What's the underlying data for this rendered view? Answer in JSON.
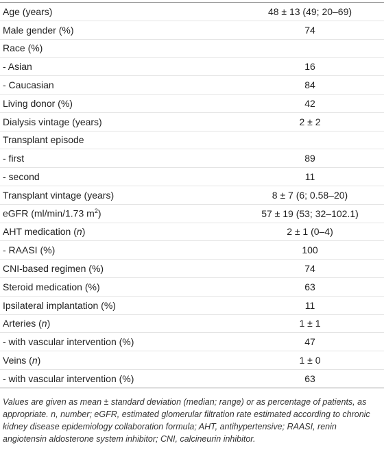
{
  "table": {
    "rows": [
      {
        "label": [
          "Age (years)"
        ],
        "value": "48 ± 13 (49; 20–69)"
      },
      {
        "label": [
          "Male gender (%)"
        ],
        "value": "74"
      },
      {
        "label": [
          "Race (%)"
        ],
        "value": null
      },
      {
        "label": [
          "- Asian"
        ],
        "value": "16"
      },
      {
        "label": [
          "- Caucasian"
        ],
        "value": "84"
      },
      {
        "label": [
          "Living donor (%)"
        ],
        "value": "42"
      },
      {
        "label": [
          "Dialysis vintage (years)"
        ],
        "value": "2 ± 2"
      },
      {
        "label": [
          "Transplant episode"
        ],
        "value": null
      },
      {
        "label": [
          "- first"
        ],
        "value": "89"
      },
      {
        "label": [
          "- second"
        ],
        "value": "11"
      },
      {
        "label": [
          "Transplant vintage (years)"
        ],
        "value": "8 ± 7 (6; 0.58–20)"
      },
      {
        "label": [
          "eGFR (ml/min/1.73 m",
          {
            "text": "2",
            "format": "sup"
          },
          ")"
        ],
        "value": "57 ± 19 (53; 32–102.1)"
      },
      {
        "label": [
          "AHT medication (",
          {
            "text": "n",
            "format": "italic"
          },
          ")"
        ],
        "value": "2 ± 1 (0–4)"
      },
      {
        "label": [
          "- RAASI (%)"
        ],
        "value": "100"
      },
      {
        "label": [
          "CNI-based regimen (%)"
        ],
        "value": "74"
      },
      {
        "label": [
          "Steroid medication (%)"
        ],
        "value": "63"
      },
      {
        "label": [
          "Ipsilateral implantation (%)"
        ],
        "value": "11"
      },
      {
        "label": [
          "Arteries (",
          {
            "text": "n",
            "format": "italic"
          },
          ")"
        ],
        "value": "1 ± 1"
      },
      {
        "label": [
          "- with vascular intervention (%)"
        ],
        "value": "47"
      },
      {
        "label": [
          "Veins (",
          {
            "text": "n",
            "format": "italic"
          },
          ")"
        ],
        "value": "1 ± 0"
      },
      {
        "label": [
          "- with vascular intervention (%)"
        ],
        "value": "63"
      }
    ],
    "footnote": "Values are given as mean ± standard deviation (median; range) or as percentage of patients, as appropriate. n, number; eGFR, estimated glomerular filtration rate estimated according to chronic kidney disease epidemiology collaboration formula; AHT, antihypertensive; RAASI, renin angiotensin aldosterone system inhibitor; CNI, calcineurin inhibitor."
  }
}
